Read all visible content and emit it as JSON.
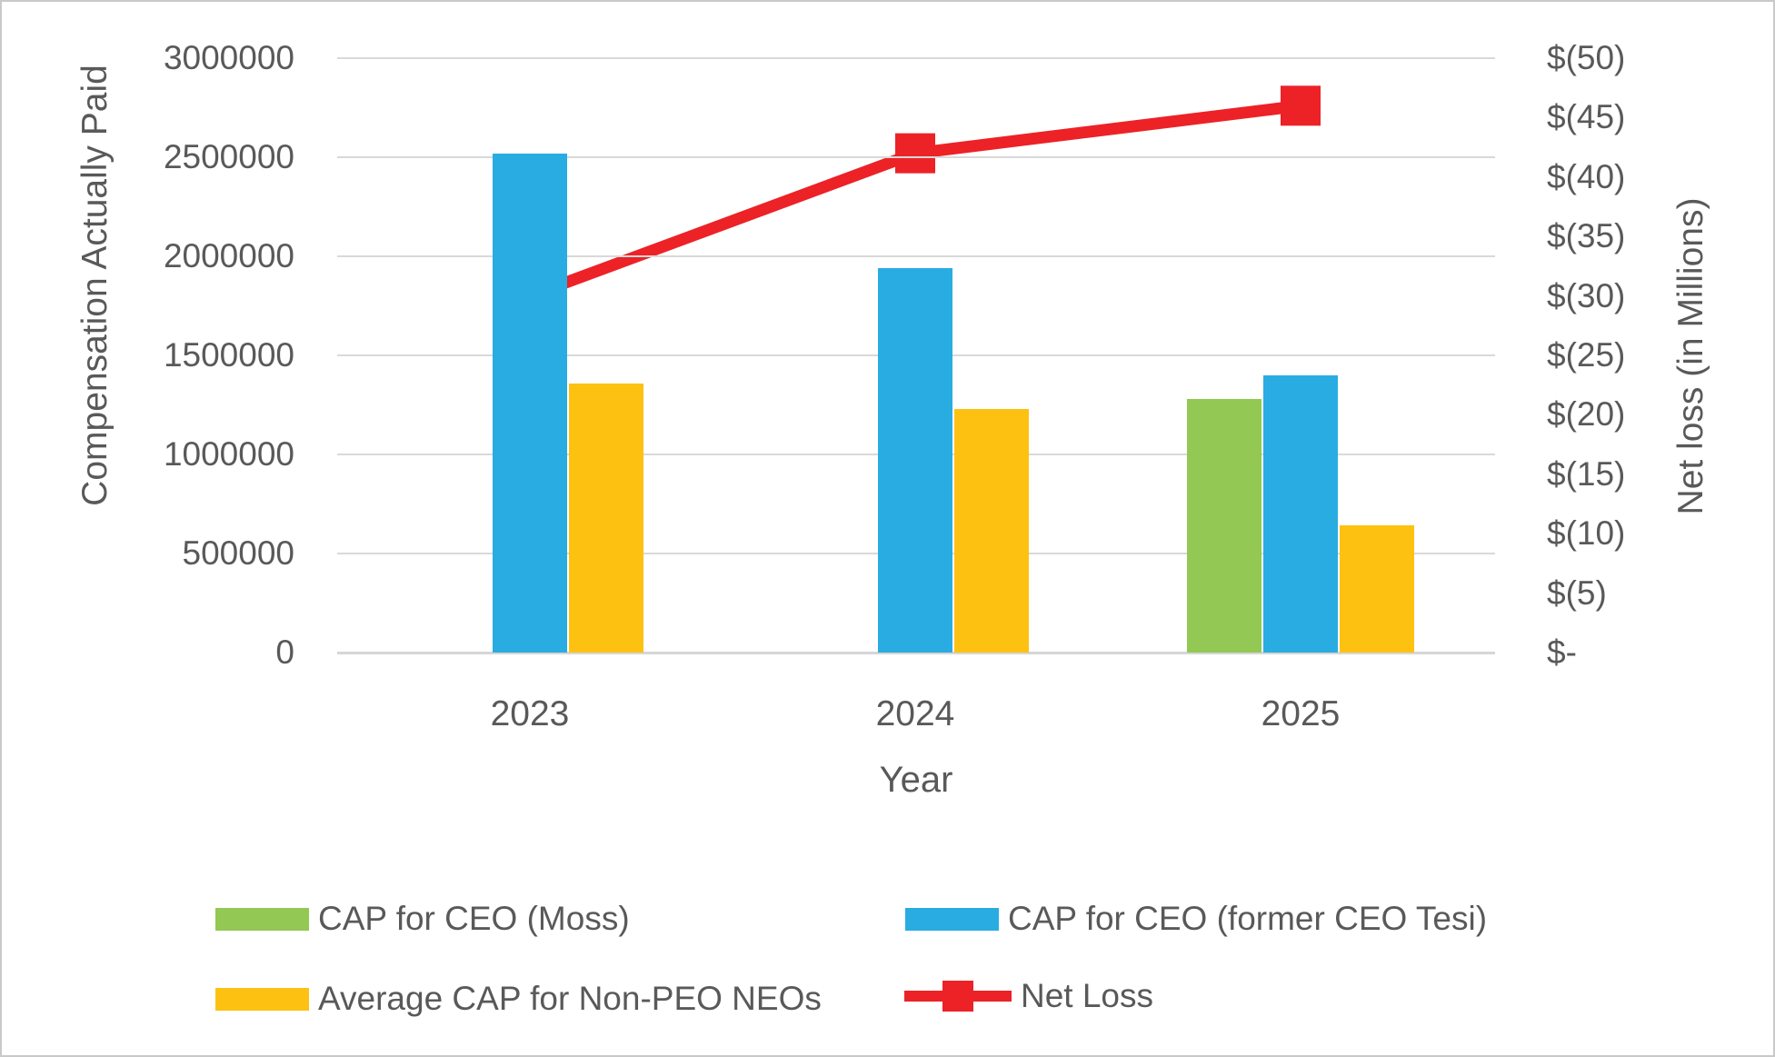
{
  "frame": {
    "background": "#FFFFFF",
    "border_color": "#C9C9C9",
    "text_color": "#595959",
    "gridline_color": "#D9D9D9"
  },
  "chart_data": {
    "type": "bar",
    "subtype": "combo bar + line, dual axis",
    "categories": [
      "2023",
      "2024",
      "2025"
    ],
    "series": [
      {
        "name": "CAP for CEO (Moss)",
        "type": "bar",
        "axis": "left",
        "color": "#92C853",
        "values": [
          null,
          null,
          1280000
        ]
      },
      {
        "name": "CAP for CEO (former CEO Tesi)",
        "type": "bar",
        "axis": "left",
        "color": "#29ACE2",
        "values": [
          2520000,
          1940000,
          1400000
        ]
      },
      {
        "name": "Average CAP for Non-PEO NEOs",
        "type": "bar",
        "axis": "left",
        "color": "#FDC111",
        "values": [
          1360000,
          1230000,
          640000
        ]
      },
      {
        "name": "Net Loss",
        "type": "line",
        "axis": "right",
        "color": "#EC2227",
        "marker": "square",
        "values": [
          -30,
          -42,
          -46
        ]
      }
    ],
    "left_axis": {
      "title": "Compensation Actually Paid",
      "min": 0,
      "max": 3000000,
      "step": 500000,
      "tick_labels": [
        "0",
        "500000",
        "1000000",
        "1500000",
        "2000000",
        "2500000",
        "3000000"
      ]
    },
    "right_axis": {
      "title": "Net loss (in Millions)",
      "min": 0,
      "max": -50,
      "step": -5,
      "tick_labels": [
        "$-",
        "$(5)",
        "$(10)",
        "$(15)",
        "$(20)",
        "$(25)",
        "$(30)",
        "$(35)",
        "$(40)",
        "$(45)",
        "$(50)"
      ]
    },
    "x_axis": {
      "title": "Year"
    },
    "legend": {
      "position": "bottom",
      "items": [
        "CAP for CEO (Moss)",
        "CAP for CEO (former CEO Tesi)",
        "Average CAP for Non-PEO NEOs",
        "Net Loss"
      ]
    },
    "grid": true
  }
}
